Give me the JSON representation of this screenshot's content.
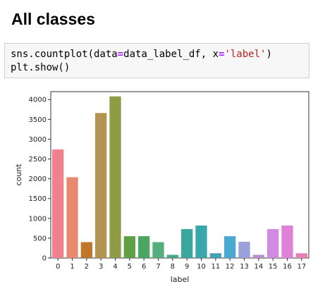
{
  "heading": "All classes",
  "code": {
    "line1": {
      "a": "sns.countplot(data",
      "eq1": "=",
      "b": "data_label_df, x",
      "eq2": "=",
      "str": "'label'",
      "c": ")"
    },
    "line2": "plt.show()"
  },
  "chart_data": {
    "type": "bar",
    "categories": [
      "0",
      "1",
      "2",
      "3",
      "4",
      "5",
      "6",
      "7",
      "8",
      "9",
      "10",
      "11",
      "12",
      "13",
      "14",
      "15",
      "16",
      "17"
    ],
    "values": [
      2740,
      2040,
      400,
      3660,
      4080,
      550,
      550,
      400,
      80,
      730,
      820,
      120,
      550,
      410,
      80,
      730,
      820,
      120
    ],
    "colors": [
      "#f77189",
      "#e98832",
      "#c0912f",
      "#a89a31",
      "#8fa232",
      "#5ea931",
      "#32b165",
      "#34ae8d",
      "#35ac9e",
      "#36aaae",
      "#38a7c1",
      "#3ba3da",
      "#6f9af4",
      "#a48cf4",
      "#cd79f4",
      "#f561dd",
      "#f46fbe",
      "#f571a0"
    ],
    "display_colors": [
      "#f0818f",
      "#e68a70",
      "#c0772a",
      "#b39450",
      "#8f9b45",
      "#5ea043",
      "#4ca663",
      "#53b07c",
      "#47a888",
      "#3ba89d",
      "#39a6a9",
      "#42a3b8",
      "#4aa9d0",
      "#9aa0dc",
      "#b990d5",
      "#d08ae0",
      "#e081d8",
      "#ea7fb8"
    ],
    "xlabel": "label",
    "ylabel": "count",
    "yticks": [
      0,
      500,
      1000,
      1500,
      2000,
      2500,
      3000,
      3500,
      4000
    ],
    "ylim": [
      0,
      4200
    ],
    "grid": false
  }
}
